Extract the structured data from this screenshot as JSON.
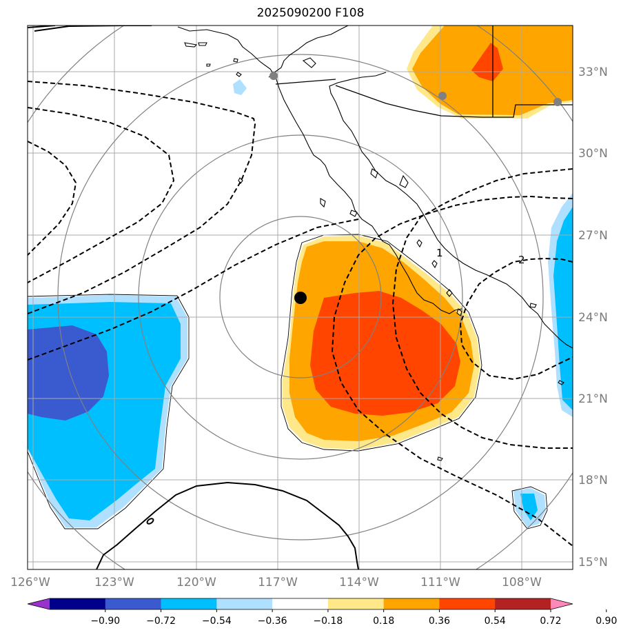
{
  "title": "2025090200 F108",
  "lon_labels": [
    "126°W",
    "123°W",
    "120°W",
    "117°W",
    "114°W",
    "111°W",
    "108°W"
  ],
  "lat_labels": [
    "33°N",
    "30°N",
    "27°N",
    "24°N",
    "21°N",
    "18°N",
    "15°N"
  ],
  "contour_labels": [
    "1",
    "2",
    "0"
  ],
  "colorbar": {
    "ticks": [
      "−0.90",
      "−0.72",
      "−0.54",
      "−0.36",
      "−0.18",
      "0.18",
      "0.36",
      "0.54",
      "0.72",
      "0.90"
    ],
    "colors": [
      "#9932cc",
      "#00008b",
      "#3a5bcf",
      "#00bfff",
      "#b0e0ff",
      "#ffffff",
      "#ffe88a",
      "#ffa500",
      "#ff4500",
      "#b22222",
      "#ff88bb"
    ]
  },
  "storm_center": {
    "lon": "116.2°W",
    "lat": "24.7°N"
  }
}
